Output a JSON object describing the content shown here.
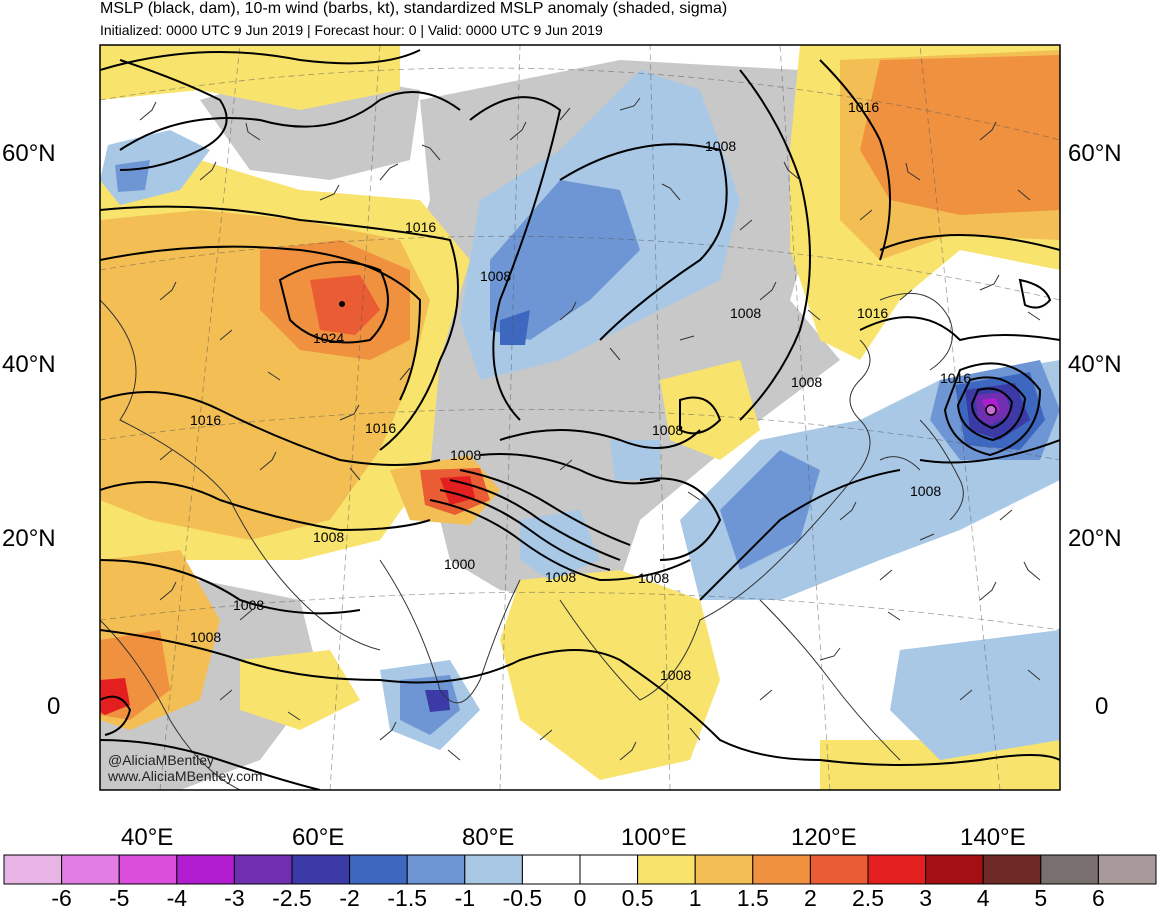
{
  "header": {
    "title": "MSLP (black, dam), 10-m wind (barbs, kt), standardized MSLP anomaly (shaded, sigma)",
    "subtitle": "Initialized: 0000 UTC 9 Jun 2019 | Forecast hour: 0 | Valid: 0000 UTC 9 Jun 2019"
  },
  "axes": {
    "lat_labels": [
      "60°N",
      "40°N",
      "20°N",
      "0"
    ],
    "lon_labels": [
      "40°E",
      "60°E",
      "80°E",
      "100°E",
      "120°E",
      "140°E"
    ]
  },
  "isobar_labels": [
    "1016",
    "1008",
    "1016",
    "1008",
    "1008",
    "1016",
    "1024",
    "1008",
    "1016",
    "1016",
    "1016",
    "1008",
    "1008",
    "1008",
    "1008",
    "1000",
    "1008",
    "1008",
    "1008",
    "1008",
    "1008"
  ],
  "credit": {
    "handle": "@AliciaMBentley",
    "site": "www.AliciaMBentley.com"
  },
  "colorbar": {
    "ticks": [
      "-6",
      "-5",
      "-4",
      "-3",
      "-2.5",
      "-2",
      "-1.5",
      "-1",
      "-0.5",
      "0",
      "0.5",
      "1",
      "1.5",
      "2",
      "2.5",
      "3",
      "4",
      "5",
      "6"
    ],
    "colors": [
      "#e8b4e6",
      "#e27ee3",
      "#d94fdb",
      "#b21cd0",
      "#6f2fb0",
      "#3b3aa6",
      "#3e68c0",
      "#6f96d4",
      "#a8c8e6",
      "#ffffff",
      "#ffffff",
      "#f8e36c",
      "#f3bf54",
      "#f0913f",
      "#ea5c34",
      "#e41f1f",
      "#a31013",
      "#6d2a26",
      "#7a6f6f",
      "#a89a9a"
    ]
  },
  "colors": {
    "land_gray": "#c8c8c8",
    "neg_light": "#a8c8e6",
    "neg_mid": "#6f96d4",
    "neg_dark": "#3e68c0",
    "pos_yellow": "#f8e36c",
    "pos_orange": "#f3bf54",
    "pos_dark_orange": "#f0913f",
    "pos_red": "#ea5c34"
  }
}
